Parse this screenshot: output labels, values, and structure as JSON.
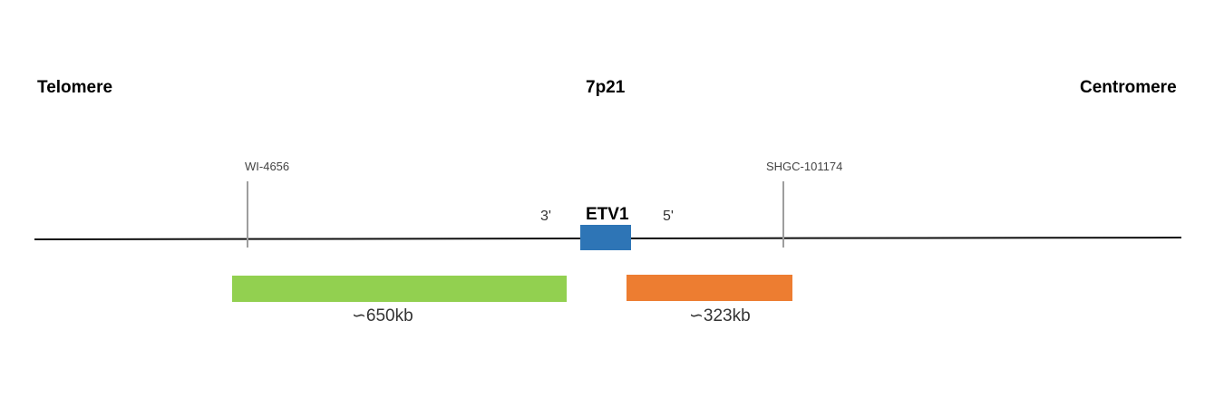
{
  "headings": {
    "left": "Telomere",
    "center": "7p21",
    "right": "Centromere"
  },
  "markers": [
    {
      "label": "WI-4656"
    },
    {
      "label": "SHGC-101174"
    }
  ],
  "gene": {
    "name": "ETV1",
    "three_prime": "3'",
    "five_prime": "5'",
    "color": "#2e75b6"
  },
  "probes": [
    {
      "label": "∽650kb",
      "color": "#92d050"
    },
    {
      "label": "∽323kb",
      "color": "#ed7d31"
    }
  ]
}
